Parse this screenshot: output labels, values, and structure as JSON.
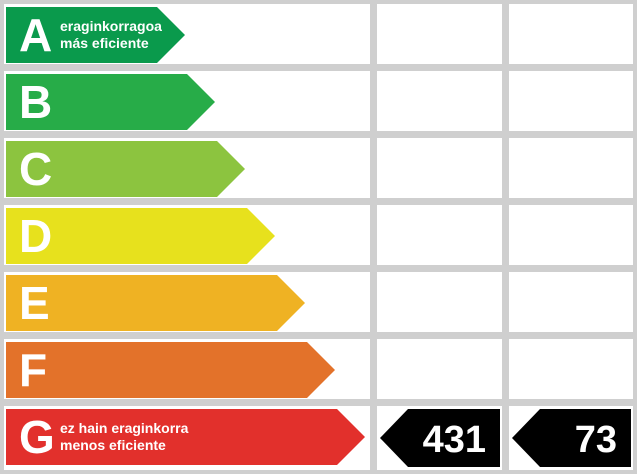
{
  "ratings": [
    {
      "letter": "A",
      "label": [
        "eraginkorragoa",
        "más eficiente"
      ],
      "color": "#0a9a4c"
    },
    {
      "letter": "B",
      "label": [],
      "color": "#27ac48"
    },
    {
      "letter": "C",
      "label": [],
      "color": "#8cc43f"
    },
    {
      "letter": "D",
      "label": [],
      "color": "#e7e11d"
    },
    {
      "letter": "E",
      "label": [],
      "color": "#efb223"
    },
    {
      "letter": "F",
      "label": [],
      "color": "#e3722a"
    },
    {
      "letter": "G",
      "label": [
        "ez hain eraginkorra",
        "menos eficiente"
      ],
      "color": "#e2302c"
    }
  ],
  "indicators": [
    431,
    73
  ]
}
